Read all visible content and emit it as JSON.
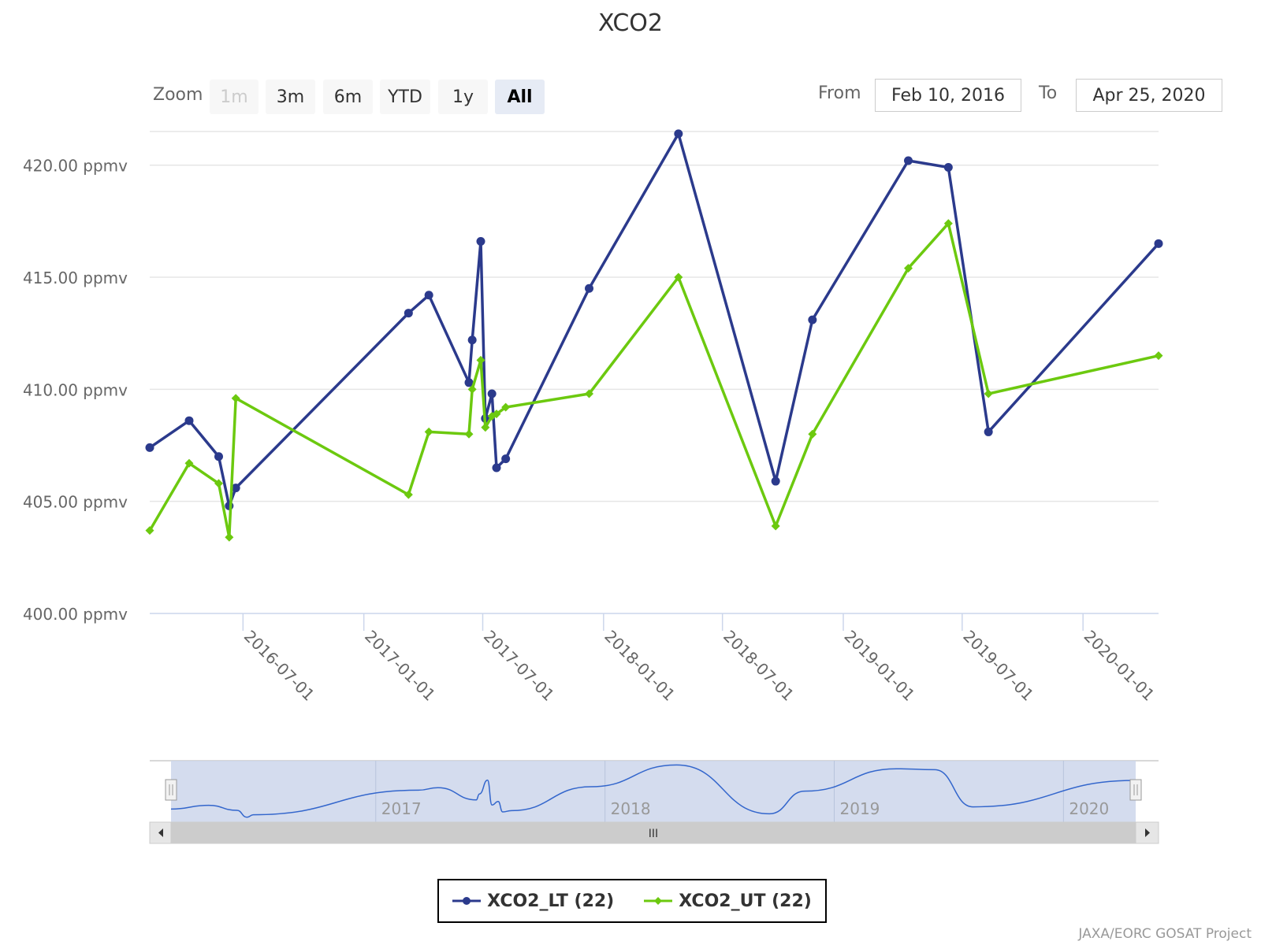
{
  "title": "XCO2",
  "range_selector": {
    "zoom_label": "Zoom",
    "buttons": [
      {
        "label": "1m",
        "state": "disabled"
      },
      {
        "label": "3m",
        "state": "normal"
      },
      {
        "label": "6m",
        "state": "normal"
      },
      {
        "label": "YTD",
        "state": "normal"
      },
      {
        "label": "1y",
        "state": "normal"
      },
      {
        "label": "All",
        "state": "active"
      }
    ],
    "from_label": "From",
    "from_value": "Feb 10, 2016",
    "to_label": "To",
    "to_value": "Apr 25, 2020"
  },
  "chart_data": {
    "type": "line",
    "title": "XCO2",
    "xlabel": "",
    "ylabel": "",
    "x_type": "date",
    "x_range": [
      "2016-02-10",
      "2020-04-25"
    ],
    "ylim": [
      400,
      421.5
    ],
    "y_ticks": [
      "400.00 ppmv",
      "405.00 ppmv",
      "410.00 ppmv",
      "415.00 ppmv",
      "420.00 ppmv"
    ],
    "x_ticks": [
      "2016-07-01",
      "2017-01-01",
      "2017-07-01",
      "2018-01-01",
      "2018-07-01",
      "2019-01-01",
      "2019-07-01",
      "2020-01-01"
    ],
    "grid": true,
    "legend_position": "bottom-center",
    "series": [
      {
        "name": "XCO2_LT (22)",
        "color": "#2b3a8c",
        "marker": "circle",
        "points": [
          [
            "2016-02-10",
            407.4
          ],
          [
            "2016-04-10",
            408.6
          ],
          [
            "2016-05-25",
            407.0
          ],
          [
            "2016-06-10",
            404.8
          ],
          [
            "2016-06-20",
            405.6
          ],
          [
            "2017-03-10",
            413.4
          ],
          [
            "2017-04-10",
            414.2
          ],
          [
            "2017-06-10",
            410.3
          ],
          [
            "2017-06-15",
            412.2
          ],
          [
            "2017-06-28",
            416.6
          ],
          [
            "2017-07-05",
            408.7
          ],
          [
            "2017-07-15",
            409.8
          ],
          [
            "2017-07-22",
            406.5
          ],
          [
            "2017-08-05",
            406.9
          ],
          [
            "2017-12-10",
            414.5
          ],
          [
            "2018-04-25",
            421.4
          ],
          [
            "2018-09-20",
            405.9
          ],
          [
            "2018-11-15",
            413.1
          ],
          [
            "2019-04-10",
            420.2
          ],
          [
            "2019-06-10",
            419.9
          ],
          [
            "2019-08-10",
            408.1
          ],
          [
            "2020-04-25",
            416.5
          ]
        ]
      },
      {
        "name": "XCO2_UT (22)",
        "color": "#6cc90f",
        "marker": "diamond",
        "points": [
          [
            "2016-02-10",
            403.7
          ],
          [
            "2016-04-10",
            406.7
          ],
          [
            "2016-05-25",
            405.8
          ],
          [
            "2016-06-10",
            403.4
          ],
          [
            "2016-06-20",
            409.6
          ],
          [
            "2017-03-10",
            405.3
          ],
          [
            "2017-04-10",
            408.1
          ],
          [
            "2017-06-10",
            408.0
          ],
          [
            "2017-06-15",
            410.0
          ],
          [
            "2017-06-28",
            411.3
          ],
          [
            "2017-07-05",
            408.3
          ],
          [
            "2017-07-15",
            408.8
          ],
          [
            "2017-07-22",
            408.9
          ],
          [
            "2017-08-05",
            409.2
          ],
          [
            "2017-12-10",
            409.8
          ],
          [
            "2018-04-25",
            415.0
          ],
          [
            "2018-09-20",
            403.9
          ],
          [
            "2018-11-15",
            408.0
          ],
          [
            "2019-04-10",
            415.4
          ],
          [
            "2019-06-10",
            417.4
          ],
          [
            "2019-08-10",
            409.8
          ],
          [
            "2020-04-25",
            411.5
          ]
        ]
      }
    ]
  },
  "navigator": {
    "year_labels": [
      "2017",
      "2018",
      "2019",
      "2020"
    ],
    "scrollbar_grip": "III",
    "left_arrow": "◀",
    "right_arrow": "▶",
    "handle_glyph": "||"
  },
  "credits": "JAXA/EORC GOSAT Project"
}
